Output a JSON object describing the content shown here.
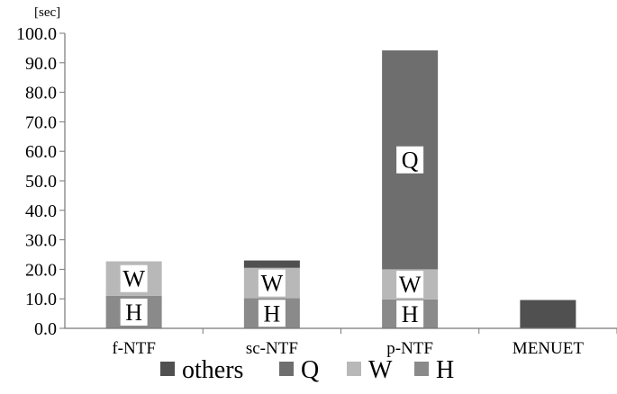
{
  "chart_data": {
    "type": "bar",
    "stacked": true,
    "unit": "[sec]",
    "categories": [
      "f-NTF",
      "sc-NTF",
      "p-NTF",
      "MENUET"
    ],
    "yticks": [
      "0.0",
      "10.0",
      "20.0",
      "30.0",
      "40.0",
      "50.0",
      "60.0",
      "70.0",
      "80.0",
      "90.0",
      "100.0"
    ],
    "ylim": [
      0,
      100
    ],
    "series": [
      {
        "name": "H",
        "color": "#8a8a8a",
        "values": [
          11.0,
          10.2,
          9.8,
          0
        ]
      },
      {
        "name": "W",
        "color": "#b8b8b8",
        "values": [
          11.7,
          10.3,
          10.2,
          0
        ]
      },
      {
        "name": "Q",
        "color": "#6e6e6e",
        "values": [
          0,
          0,
          74.2,
          0
        ]
      },
      {
        "name": "others",
        "color": "#505050",
        "values": [
          0,
          2.5,
          0,
          9.6
        ]
      }
    ],
    "segment_labels": [
      {
        "category": 0,
        "series": 0,
        "text": "H"
      },
      {
        "category": 0,
        "series": 1,
        "text": "W"
      },
      {
        "category": 1,
        "series": 0,
        "text": "H"
      },
      {
        "category": 1,
        "series": 1,
        "text": "W"
      },
      {
        "category": 2,
        "series": 0,
        "text": "H"
      },
      {
        "category": 2,
        "series": 1,
        "text": "W"
      },
      {
        "category": 2,
        "series": 2,
        "text": "Q"
      }
    ],
    "legend": {
      "placement": "bottom",
      "order": [
        "others",
        "Q",
        "W",
        "H"
      ]
    }
  }
}
